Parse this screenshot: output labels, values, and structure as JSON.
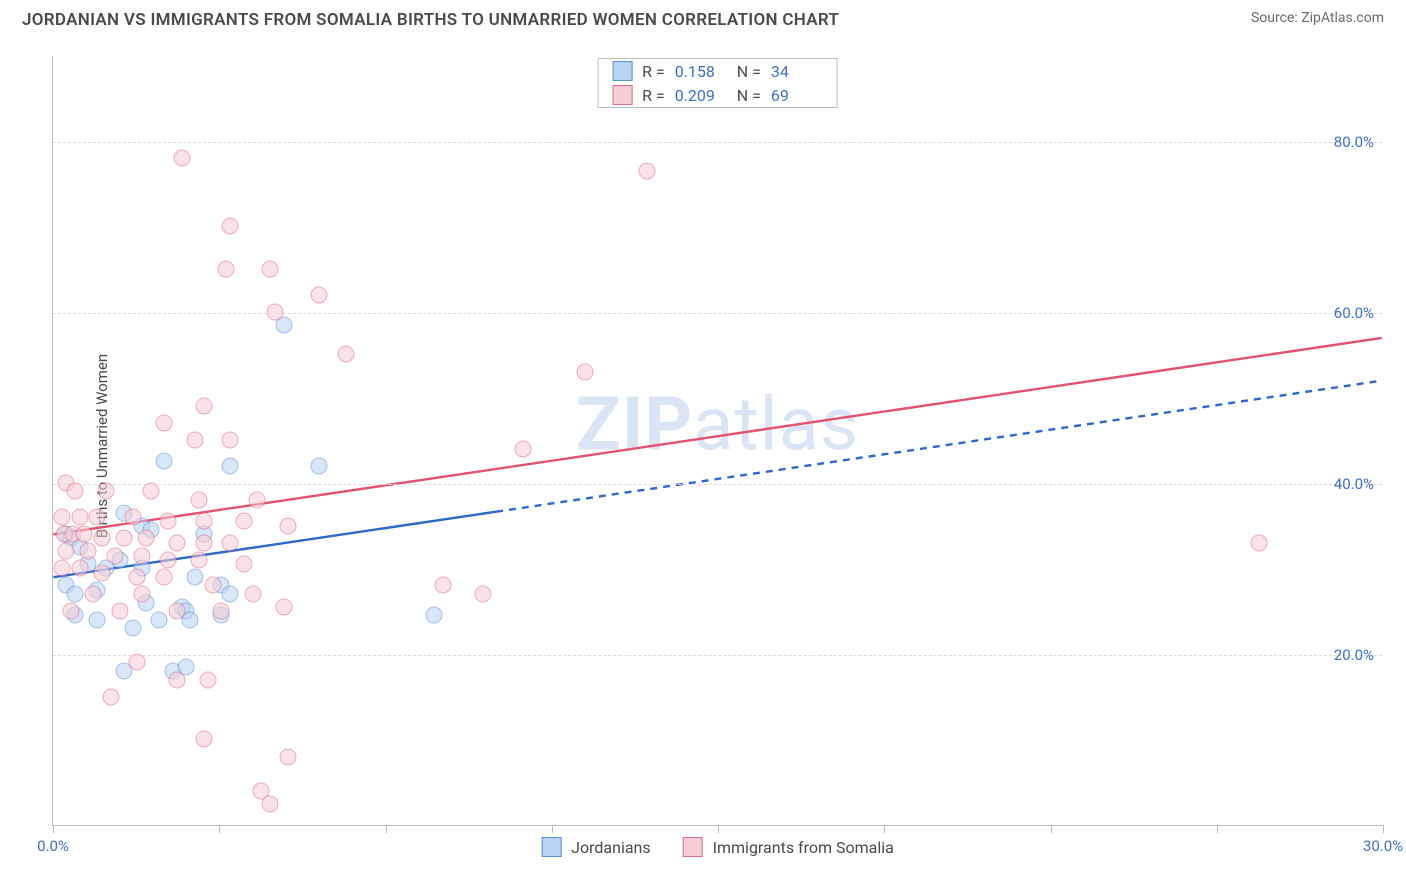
{
  "header": {
    "title": "JORDANIAN VS IMMIGRANTS FROM SOMALIA BIRTHS TO UNMARRIED WOMEN CORRELATION CHART",
    "source": "Source: ZipAtlas.com"
  },
  "watermark": {
    "bold": "ZIP",
    "rest": "atlas"
  },
  "chart": {
    "type": "scatter",
    "ylabel": "Births to Unmarried Women",
    "yaxis": {
      "min": 0,
      "max": 90,
      "ticks": [
        20,
        40,
        60,
        80
      ],
      "tick_labels": [
        "20.0%",
        "40.0%",
        "60.0%",
        "80.0%"
      ],
      "label_color": "#3d6fc9",
      "grid_color": "#dcdcdc"
    },
    "xaxis": {
      "min": 0,
      "max": 30,
      "ticks": [
        0,
        3.75,
        7.5,
        11.25,
        15,
        18.75,
        22.5,
        26.25,
        30
      ],
      "end_labels": {
        "left": "0.0%",
        "right": "30.0%"
      },
      "label_color": "#3d6fc9"
    },
    "series": [
      {
        "id": "jordanians",
        "label": "Jordanians",
        "R": "0.158",
        "N": "34",
        "marker_size": 17,
        "fill_color": "#b9d3f3",
        "fill_opacity": 0.55,
        "stroke_color": "#5e91db",
        "stroke_width": 1.2,
        "trend": {
          "color": "#2e68c9",
          "width": 2.4,
          "solid_until_x": 10,
          "y0": 29,
          "y30": 52
        },
        "points": [
          [
            5.2,
            58.5
          ],
          [
            2.5,
            42.5
          ],
          [
            4.0,
            42
          ],
          [
            6.0,
            42
          ],
          [
            0.3,
            34
          ],
          [
            0.4,
            33.5
          ],
          [
            0.6,
            32.5
          ],
          [
            1.6,
            36.5
          ],
          [
            2.0,
            35
          ],
          [
            2.2,
            34.5
          ],
          [
            3.4,
            34
          ],
          [
            0.8,
            30.5
          ],
          [
            1.2,
            30
          ],
          [
            1.5,
            31
          ],
          [
            2.0,
            30
          ],
          [
            3.2,
            29
          ],
          [
            3.8,
            28
          ],
          [
            0.3,
            28
          ],
          [
            0.5,
            27
          ],
          [
            1.0,
            27.5
          ],
          [
            2.1,
            26
          ],
          [
            2.9,
            25.5
          ],
          [
            3.0,
            25
          ],
          [
            4.0,
            27
          ],
          [
            0.5,
            24.5
          ],
          [
            1.0,
            24
          ],
          [
            1.8,
            23
          ],
          [
            2.4,
            24
          ],
          [
            3.1,
            24
          ],
          [
            3.8,
            24.5
          ],
          [
            8.6,
            24.5
          ],
          [
            1.6,
            18
          ],
          [
            2.7,
            18
          ],
          [
            3.0,
            18.5
          ]
        ]
      },
      {
        "id": "somalia",
        "label": "Immigants from Somalia",
        "bottom_label": "Immigrants from Somalia",
        "R": "0.209",
        "N": "69",
        "marker_size": 17,
        "fill_color": "#f6cdd6",
        "fill_opacity": 0.55,
        "stroke_color": "#e06a87",
        "stroke_width": 1.2,
        "trend": {
          "color": "#e5516f",
          "width": 2.4,
          "solid_until_x": 30,
          "y0": 34,
          "y30": 57
        },
        "points": [
          [
            2.9,
            78
          ],
          [
            13.4,
            76.5
          ],
          [
            4.0,
            70
          ],
          [
            3.9,
            65
          ],
          [
            4.9,
            65
          ],
          [
            6.0,
            62
          ],
          [
            5.0,
            60
          ],
          [
            6.6,
            55
          ],
          [
            12.0,
            53
          ],
          [
            3.4,
            49
          ],
          [
            2.5,
            47
          ],
          [
            3.2,
            45
          ],
          [
            4.0,
            45
          ],
          [
            10.6,
            44
          ],
          [
            0.3,
            40
          ],
          [
            0.5,
            39
          ],
          [
            1.2,
            39
          ],
          [
            2.2,
            39
          ],
          [
            3.3,
            38
          ],
          [
            4.6,
            38
          ],
          [
            0.2,
            36
          ],
          [
            0.6,
            36
          ],
          [
            1.0,
            36
          ],
          [
            1.8,
            36
          ],
          [
            2.6,
            35.5
          ],
          [
            3.4,
            35.5
          ],
          [
            4.3,
            35.5
          ],
          [
            5.3,
            35
          ],
          [
            0.25,
            34
          ],
          [
            0.45,
            34
          ],
          [
            0.7,
            34
          ],
          [
            1.1,
            33.5
          ],
          [
            1.6,
            33.5
          ],
          [
            2.1,
            33.5
          ],
          [
            2.8,
            33
          ],
          [
            3.4,
            33
          ],
          [
            4.0,
            33
          ],
          [
            0.3,
            32
          ],
          [
            0.8,
            32
          ],
          [
            1.4,
            31.5
          ],
          [
            2.0,
            31.5
          ],
          [
            2.6,
            31
          ],
          [
            3.3,
            31
          ],
          [
            4.3,
            30.5
          ],
          [
            0.2,
            30
          ],
          [
            0.6,
            30
          ],
          [
            1.1,
            29.5
          ],
          [
            1.9,
            29
          ],
          [
            2.5,
            29
          ],
          [
            3.6,
            28
          ],
          [
            27.2,
            33
          ],
          [
            0.9,
            27
          ],
          [
            2.0,
            27
          ],
          [
            4.5,
            27
          ],
          [
            8.8,
            28
          ],
          [
            9.7,
            27
          ],
          [
            0.4,
            25
          ],
          [
            1.5,
            25
          ],
          [
            2.8,
            25
          ],
          [
            3.8,
            25
          ],
          [
            5.2,
            25.5
          ],
          [
            1.9,
            19
          ],
          [
            2.8,
            17
          ],
          [
            3.5,
            17
          ],
          [
            3.4,
            10
          ],
          [
            5.3,
            8
          ],
          [
            4.7,
            4
          ],
          [
            4.9,
            2.5
          ],
          [
            1.3,
            15
          ]
        ]
      }
    ],
    "legend_box": {
      "border_color": "#bfbfbf"
    },
    "background_color": "#ffffff",
    "axis_color": "#bdbdbd"
  }
}
